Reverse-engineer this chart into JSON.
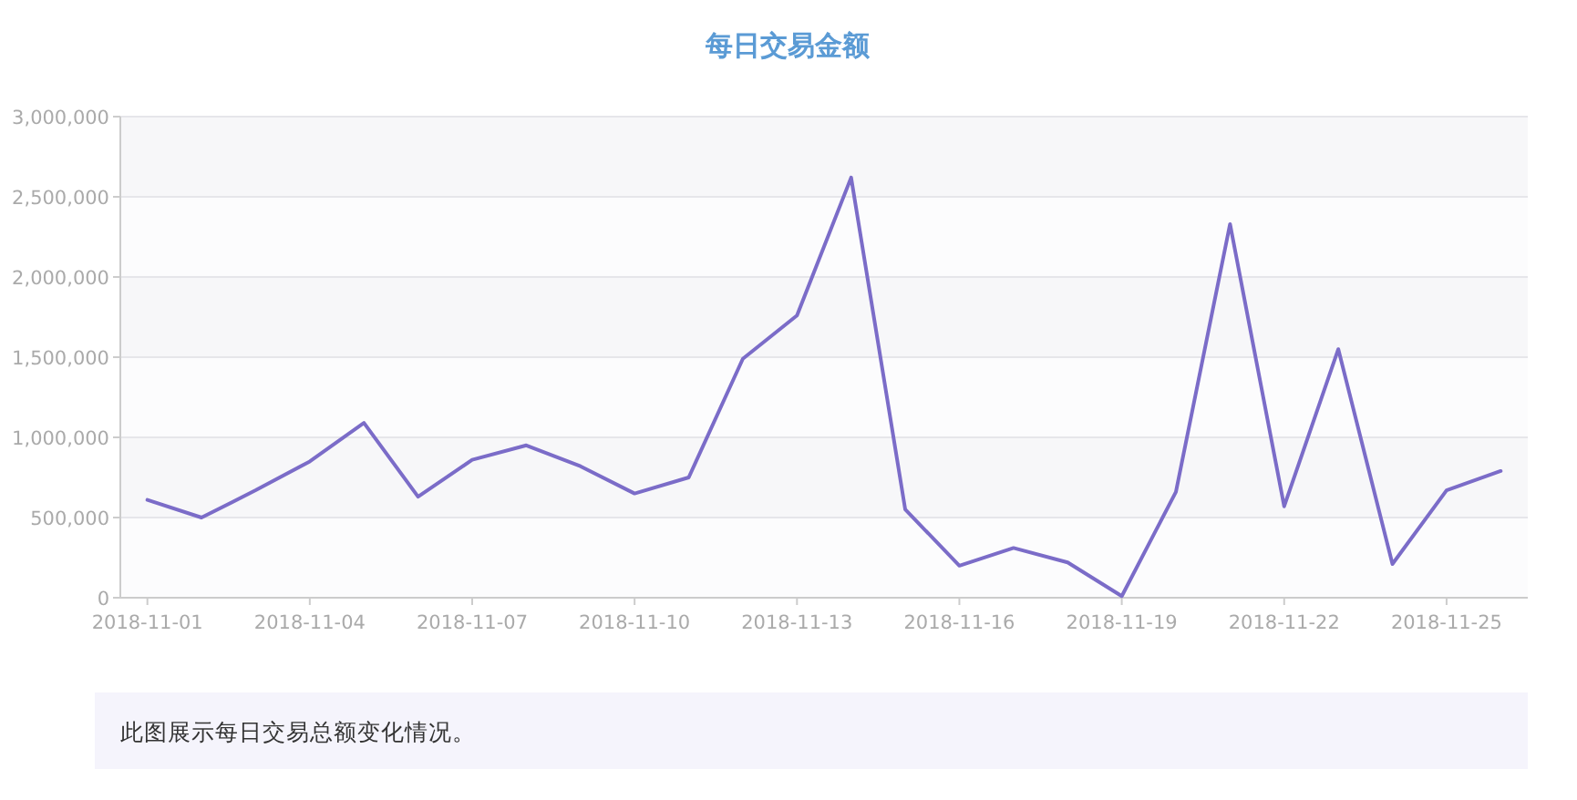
{
  "chart_data": {
    "type": "line",
    "title": "每日交易金额",
    "x": [
      "2018-11-01",
      "2018-11-02",
      "2018-11-03",
      "2018-11-04",
      "2018-11-05",
      "2018-11-06",
      "2018-11-07",
      "2018-11-08",
      "2018-11-09",
      "2018-11-10",
      "2018-11-11",
      "2018-11-12",
      "2018-11-13",
      "2018-11-14",
      "2018-11-15",
      "2018-11-16",
      "2018-11-17",
      "2018-11-18",
      "2018-11-19",
      "2018-11-20",
      "2018-11-21",
      "2018-11-22",
      "2018-11-23",
      "2018-11-24",
      "2018-11-25",
      "2018-11-26"
    ],
    "series": [
      {
        "color": "#7b6cc8",
        "values": [
          610000,
          500000,
          670000,
          850000,
          1090000,
          630000,
          860000,
          950000,
          820000,
          650000,
          750000,
          1490000,
          1760000,
          2620000,
          550000,
          200000,
          310000,
          220000,
          10000,
          660000,
          2330000,
          570000,
          1550000,
          210000,
          670000,
          790000
        ]
      }
    ],
    "xlim": [
      "2018-10-31T12:00",
      "2018-11-26T12:00"
    ],
    "xticks": [
      "2018-11-01",
      "2018-11-04",
      "2018-11-07",
      "2018-11-10",
      "2018-11-13",
      "2018-11-16",
      "2018-11-19",
      "2018-11-22",
      "2018-11-25"
    ],
    "ylim": [
      0,
      3000000
    ],
    "yticks": [
      0,
      {
        "value": 500000,
        "label": "500,000"
      },
      {
        "value": 1000000,
        "label": "1,000,000"
      },
      {
        "value": 1500000,
        "label": "1,500,000"
      },
      {
        "value": 2000000,
        "label": "2,000,000"
      },
      {
        "value": 2500000,
        "label": "2,500,000"
      },
      {
        "value": 3000000,
        "label": "3,000,000"
      }
    ],
    "grid": "y",
    "annotations": [
      "此图展示每日交易总额变化情况。"
    ]
  }
}
